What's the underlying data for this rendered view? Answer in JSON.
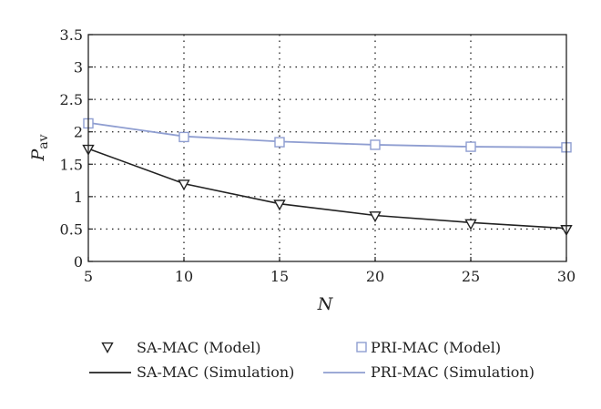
{
  "chart_data": {
    "type": "line",
    "xlabel": "N",
    "ylabel_main": "P",
    "ylabel_sub": "av",
    "xlim": [
      5,
      30
    ],
    "ylim": [
      0,
      3.5
    ],
    "xticks": [
      5,
      10,
      15,
      20,
      25,
      30
    ],
    "yticks": [
      0,
      0.5,
      1,
      1.5,
      2,
      2.5,
      3,
      3.5
    ],
    "grid": true,
    "legend_position": "bottom",
    "x": [
      5,
      10,
      15,
      20,
      25,
      30
    ],
    "series": [
      {
        "name": "SA-MAC (Model)",
        "kind": "marker",
        "marker": "triangle-down",
        "color": "#222222",
        "values": [
          1.73,
          1.19,
          0.88,
          0.7,
          0.58,
          0.49
        ]
      },
      {
        "name": "PRI-MAC (Model)",
        "kind": "marker",
        "marker": "square",
        "color": "#8f9ed1",
        "values": [
          2.13,
          1.92,
          1.84,
          1.8,
          1.77,
          1.76
        ]
      },
      {
        "name": "SA-MAC (Simulation)",
        "kind": "line",
        "color": "#222222",
        "values": [
          1.74,
          1.2,
          0.89,
          0.71,
          0.6,
          0.51
        ]
      },
      {
        "name": "PRI-MAC (Simulation)",
        "kind": "line",
        "color": "#8f9ed1",
        "values": [
          2.14,
          1.93,
          1.85,
          1.8,
          1.77,
          1.76
        ]
      }
    ]
  }
}
